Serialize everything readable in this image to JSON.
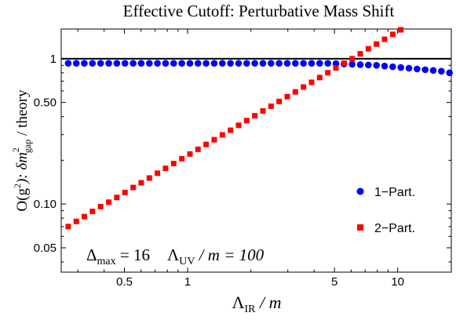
{
  "chart_data": {
    "type": "scatter",
    "title": "Effective Cutoff: Perturbative Mass Shift",
    "xlabel": {
      "main": "Λ",
      "sub": "IR",
      "rest": " / m"
    },
    "ylabel": {
      "pre": "O(g",
      "sup1": "2",
      "mid": "):  δm",
      "sup2": "2",
      "sub": "gap",
      "post": " / theory"
    },
    "x_scale": "log",
    "y_scale": "log",
    "xlim": [
      0.25,
      18
    ],
    "ylim": [
      0.034,
      1.6
    ],
    "x_ticks": [
      {
        "value": 0.5,
        "label": "0.5"
      },
      {
        "value": 1,
        "label": "1"
      },
      {
        "value": 5,
        "label": "5"
      },
      {
        "value": 10,
        "label": "10"
      }
    ],
    "y_ticks": [
      {
        "value": 0.05,
        "label": "0.05"
      },
      {
        "value": 0.1,
        "label": "0.10"
      },
      {
        "value": 0.5,
        "label": "0.50"
      },
      {
        "value": 1,
        "label": "1"
      }
    ],
    "reference_line": {
      "y": 1
    },
    "annotation": {
      "delta": "Δ",
      "delta_sub": "max",
      "eq1": " = 16",
      "lambda": "Λ",
      "lambda_sub": "UV",
      "eq2": " / m = 100"
    },
    "legend": {
      "position": "bottom-right"
    },
    "series": [
      {
        "name": "1−Part.",
        "marker": "circle",
        "color": "#0000FF",
        "x": [
          0.27,
          0.295,
          0.322,
          0.352,
          0.385,
          0.421,
          0.46,
          0.503,
          0.55,
          0.601,
          0.657,
          0.718,
          0.785,
          0.858,
          0.938,
          1.025,
          1.12,
          1.224,
          1.338,
          1.463,
          1.599,
          1.748,
          1.91,
          2.088,
          2.282,
          2.494,
          2.726,
          2.98,
          3.257,
          3.56,
          3.891,
          4.253,
          4.649,
          5.081,
          5.554,
          6.071,
          6.635,
          7.252,
          7.927,
          8.664,
          9.47,
          10.351,
          11.314,
          12.366,
          13.516,
          14.773,
          16.147,
          17.648
        ],
        "y": [
          0.93,
          0.93,
          0.93,
          0.93,
          0.93,
          0.93,
          0.93,
          0.93,
          0.93,
          0.93,
          0.93,
          0.93,
          0.93,
          0.93,
          0.93,
          0.93,
          0.93,
          0.93,
          0.93,
          0.93,
          0.93,
          0.93,
          0.93,
          0.93,
          0.93,
          0.93,
          0.93,
          0.93,
          0.93,
          0.93,
          0.93,
          0.93,
          0.93,
          0.925,
          0.92,
          0.915,
          0.91,
          0.905,
          0.9,
          0.89,
          0.88,
          0.87,
          0.86,
          0.85,
          0.84,
          0.83,
          0.82,
          0.8
        ]
      },
      {
        "name": "2−Part.",
        "marker": "square",
        "color": "#FF0000",
        "x": [
          0.27,
          0.295,
          0.322,
          0.352,
          0.385,
          0.421,
          0.46,
          0.503,
          0.55,
          0.601,
          0.657,
          0.718,
          0.785,
          0.858,
          0.938,
          1.025,
          1.12,
          1.224,
          1.338,
          1.463,
          1.599,
          1.748,
          1.91,
          2.088,
          2.282,
          2.494,
          2.726,
          2.98,
          3.257,
          3.56,
          3.891,
          4.253,
          4.649,
          5.081,
          5.554,
          6.071,
          6.635,
          7.252,
          7.927,
          8.664,
          9.47,
          10.351
        ],
        "y": [
          0.07,
          0.076,
          0.082,
          0.089,
          0.096,
          0.103,
          0.111,
          0.12,
          0.13,
          0.14,
          0.151,
          0.163,
          0.176,
          0.19,
          0.205,
          0.221,
          0.238,
          0.257,
          0.277,
          0.299,
          0.322,
          0.348,
          0.375,
          0.405,
          0.437,
          0.471,
          0.508,
          0.548,
          0.591,
          0.638,
          0.688,
          0.742,
          0.8,
          0.863,
          0.931,
          1.0,
          1.08,
          1.17,
          1.26,
          1.36,
          1.47,
          1.58
        ]
      }
    ]
  }
}
